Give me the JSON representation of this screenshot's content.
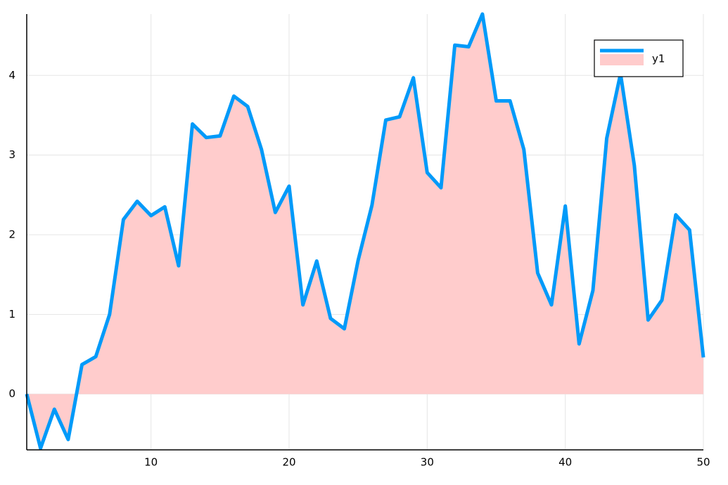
{
  "chart_data": {
    "type": "area",
    "x": [
      1,
      2,
      3,
      4,
      5,
      6,
      7,
      8,
      9,
      10,
      11,
      12,
      13,
      14,
      15,
      16,
      17,
      18,
      19,
      20,
      21,
      22,
      23,
      24,
      25,
      26,
      27,
      28,
      29,
      30,
      31,
      32,
      33,
      34,
      35,
      36,
      37,
      38,
      39,
      40,
      41,
      42,
      43,
      44,
      45,
      46,
      47,
      48,
      49,
      50
    ],
    "series": [
      {
        "name": "y1",
        "color": "#009af9",
        "fill_color": "#ffcccc",
        "values": [
          0,
          -0.68,
          -0.19,
          -0.57,
          0.37,
          0.47,
          1.0,
          2.19,
          2.42,
          2.24,
          2.35,
          1.61,
          3.39,
          3.22,
          3.24,
          3.74,
          3.61,
          3.07,
          2.28,
          2.61,
          1.12,
          1.67,
          0.95,
          0.82,
          1.68,
          2.37,
          3.44,
          3.48,
          3.97,
          2.78,
          2.59,
          4.38,
          4.36,
          4.77,
          3.68,
          3.68,
          3.07,
          1.52,
          1.12,
          2.36,
          0.63,
          1.3,
          3.21,
          4.02,
          2.87,
          0.93,
          1.18,
          2.25,
          2.06,
          0.46
        ]
      }
    ],
    "xlim": [
      1,
      50
    ],
    "ylim": [
      -0.7,
      4.77
    ],
    "xticks": [
      10,
      20,
      30,
      40,
      50
    ],
    "yticks": [
      0,
      1,
      2,
      3,
      4
    ],
    "grid": true,
    "legend": "top-right"
  }
}
